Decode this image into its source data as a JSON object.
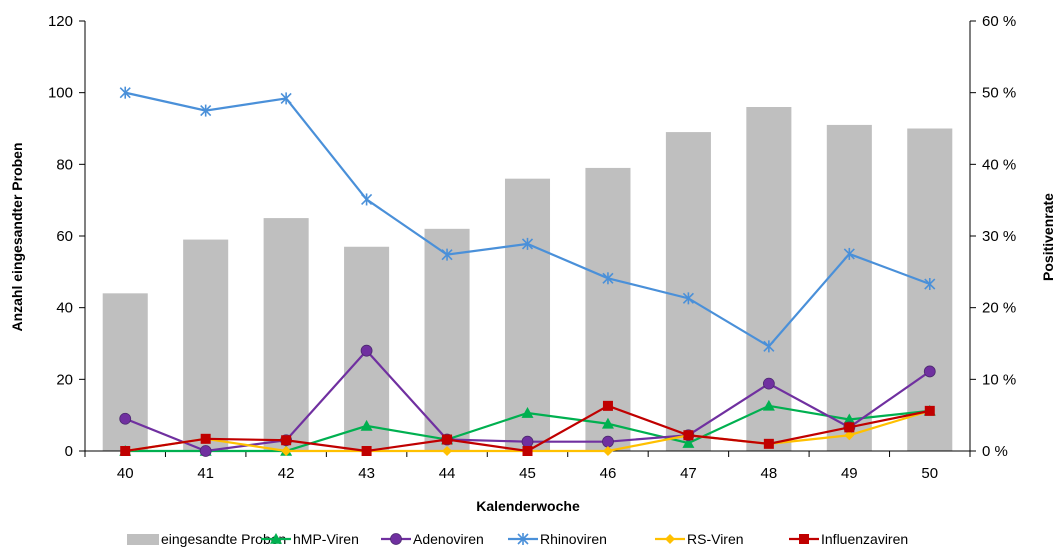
{
  "chart_data": {
    "type": "bar+line",
    "xlabel": "Kalenderwoche",
    "ylabel_left": "Anzahl eingesandter Proben",
    "ylabel_right": "Positivenrate",
    "categories": [
      "40",
      "41",
      "42",
      "43",
      "44",
      "45",
      "46",
      "47",
      "48",
      "49",
      "50"
    ],
    "left_axis": {
      "min": 0,
      "max": 120,
      "ticks": [
        "0",
        "20",
        "40",
        "60",
        "80",
        "100",
        "120"
      ]
    },
    "right_axis": {
      "min": 0,
      "max": 60,
      "ticks": [
        "0 %",
        "10 %",
        "20 %",
        "30 %",
        "40 %",
        "50 %",
        "60 %"
      ]
    },
    "bars": {
      "name": "eingesandte Proben",
      "color": "#bfbfbf",
      "values": [
        44,
        59,
        65,
        57,
        62,
        76,
        79,
        89,
        96,
        91,
        90
      ]
    },
    "series": [
      {
        "name": "hMP-Viren",
        "color": "#00b050",
        "marker": "triangle",
        "values": [
          0,
          0,
          0,
          3.5,
          1.6,
          5.3,
          3.8,
          1.1,
          6.3,
          4.4,
          5.6
        ]
      },
      {
        "name": "Adenoviren",
        "color": "#7030a0",
        "marker": "circle",
        "values": [
          4.5,
          0,
          1.5,
          14.0,
          1.6,
          1.3,
          1.3,
          2.2,
          9.4,
          3.3,
          11.1
        ]
      },
      {
        "name": "Rhinoviren",
        "color": "#4a90d9",
        "marker": "star",
        "values": [
          50.0,
          47.5,
          49.2,
          35.1,
          27.4,
          28.9,
          24.1,
          21.3,
          14.6,
          27.5,
          23.3
        ]
      },
      {
        "name": "RS-Viren",
        "color": "#ffc000",
        "marker": "diamond",
        "values": [
          0,
          1.7,
          0,
          0,
          0,
          0,
          0,
          2.2,
          1.0,
          2.2,
          5.6
        ]
      },
      {
        "name": "Influenzaviren",
        "color": "#c00000",
        "marker": "square",
        "values": [
          0,
          1.7,
          1.5,
          0,
          1.6,
          0,
          6.3,
          2.2,
          1.0,
          3.3,
          5.6
        ]
      }
    ],
    "legend_position": "bottom"
  }
}
